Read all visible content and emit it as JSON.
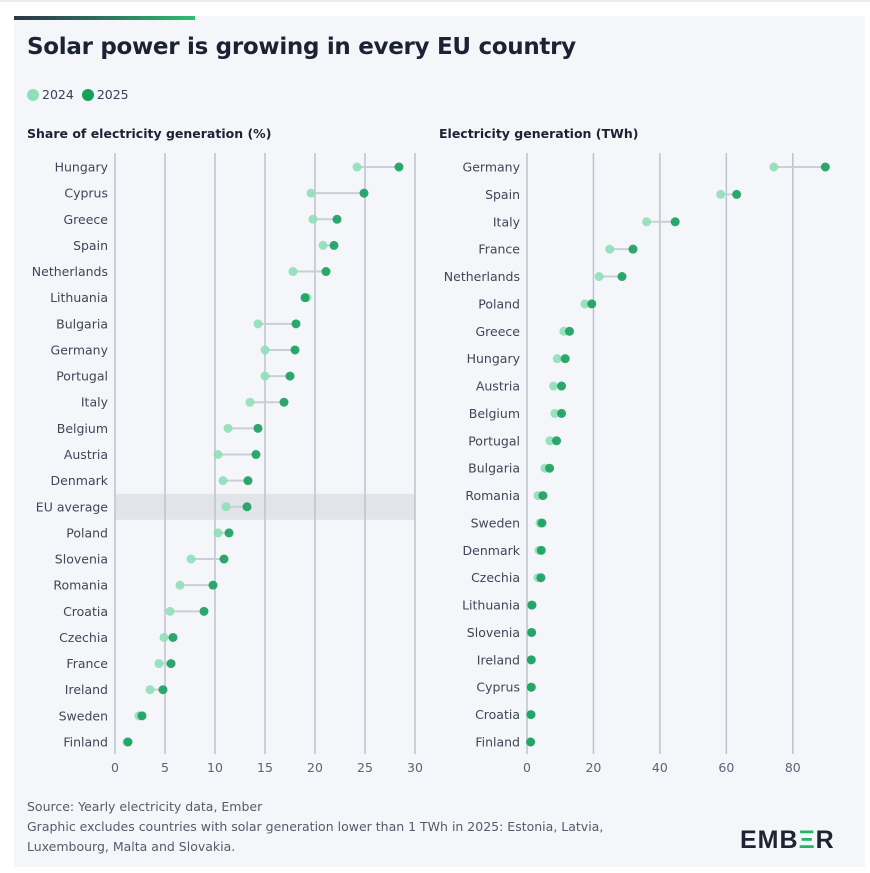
{
  "title": "Solar power is growing in every EU country",
  "legend": [
    {
      "label": "2024",
      "color": "#8fdfb8"
    },
    {
      "label": "2025",
      "color": "#17a05d"
    }
  ],
  "chart_data": [
    {
      "type": "dumbbell",
      "title": "Share of electricity generation (%)",
      "xlim": [
        0,
        30
      ],
      "ticks": [
        "0",
        "5",
        "10",
        "15",
        "20",
        "25",
        "30"
      ],
      "grid": true,
      "highlight": "EU average",
      "categories": [
        "Hungary",
        "Cyprus",
        "Greece",
        "Spain",
        "Netherlands",
        "Lithuania",
        "Bulgaria",
        "Germany",
        "Portugal",
        "Italy",
        "Belgium",
        "Austria",
        "Denmark",
        "EU average",
        "Poland",
        "Slovenia",
        "Romania",
        "Croatia",
        "Czechia",
        "France",
        "Ireland",
        "Sweden",
        "Finland"
      ],
      "series": [
        {
          "name": "2024",
          "values": [
            24.2,
            19.6,
            19.8,
            20.8,
            17.8,
            19.2,
            14.3,
            15.0,
            15.0,
            13.5,
            11.3,
            10.3,
            10.8,
            11.1,
            10.3,
            7.6,
            6.5,
            5.5,
            4.9,
            4.4,
            3.5,
            2.4,
            1.2
          ]
        },
        {
          "name": "2025",
          "values": [
            28.4,
            24.9,
            22.2,
            21.9,
            21.1,
            19.0,
            18.1,
            18.0,
            17.5,
            16.9,
            14.3,
            14.1,
            13.3,
            13.2,
            11.4,
            10.9,
            9.8,
            8.9,
            5.8,
            5.6,
            4.8,
            2.7,
            1.3
          ]
        }
      ]
    },
    {
      "type": "dumbbell",
      "title": "Electricity generation (TWh)",
      "xlim": [
        0,
        90
      ],
      "ticks": [
        "0",
        "20",
        "40",
        "60",
        "80"
      ],
      "grid": true,
      "categories": [
        "Germany",
        "Spain",
        "Italy",
        "France",
        "Netherlands",
        "Poland",
        "Greece",
        "Hungary",
        "Austria",
        "Belgium",
        "Portugal",
        "Bulgaria",
        "Romania",
        "Sweden",
        "Denmark",
        "Czechia",
        "Lithuania",
        "Slovenia",
        "Ireland",
        "Cyprus",
        "Croatia",
        "Finland"
      ],
      "series": [
        {
          "name": "2024",
          "values": [
            74.3,
            58.3,
            36.0,
            24.9,
            21.7,
            17.4,
            11.1,
            9.1,
            8.0,
            8.4,
            6.9,
            5.4,
            3.3,
            3.9,
            3.6,
            3.3,
            1.3,
            1.3,
            1.2,
            1.2,
            1.1,
            1.0
          ]
        },
        {
          "name": "2025",
          "values": [
            89.8,
            63.1,
            44.6,
            31.9,
            28.6,
            19.5,
            12.8,
            11.5,
            10.4,
            10.4,
            8.9,
            6.8,
            4.8,
            4.5,
            4.3,
            4.2,
            1.5,
            1.4,
            1.3,
            1.3,
            1.2,
            1.1
          ]
        }
      ]
    }
  ],
  "footer": {
    "source": "Source: Yearly electricity data, Ember",
    "note1": "Graphic excludes countries with solar generation lower than 1 TWh in 2025: Estonia, Latvia,",
    "note2": "Luxembourg, Malta and Slovakia."
  },
  "logo": {
    "text": "EMBER"
  }
}
